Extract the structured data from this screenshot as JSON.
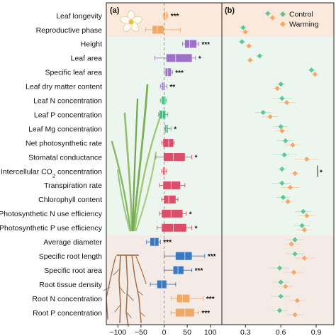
{
  "chart_data": [
    {
      "panel": "(a)",
      "type": "boxplot",
      "xlim": [
        -125,
        125
      ],
      "xticks": [
        -100,
        -50,
        0,
        50,
        100
      ],
      "reference_line": 0,
      "traits": [
        {
          "label": "Leaf longevity",
          "group": "flower",
          "q1": 0,
          "median": 3,
          "q3": 5,
          "wmin": -2,
          "wmax": 8,
          "sig": "***",
          "color": "#f0a868"
        },
        {
          "label": "Reproductive phase",
          "group": "flower",
          "q1": -25,
          "median": -15,
          "q3": -1,
          "wmin": -40,
          "wmax": 35,
          "sig": "",
          "color": "#f0a868"
        },
        {
          "label": "Height",
          "group": "leaf",
          "q1": 45,
          "median": 55,
          "q3": 70,
          "wmin": 40,
          "wmax": 75,
          "sig": "***",
          "color": "#9b72c8"
        },
        {
          "label": "Leaf area",
          "group": "leaf",
          "q1": 5,
          "median": 25,
          "q3": 60,
          "wmin": -20,
          "wmax": 68,
          "sig": "*",
          "color": "#9b72c8"
        },
        {
          "label": "Specific leaf area",
          "group": "leaf",
          "q1": 3,
          "median": 8,
          "q3": 15,
          "wmin": 0,
          "wmax": 18,
          "sig": "***",
          "color": "#9b72c8"
        },
        {
          "label": "Leaf dry matter content",
          "group": "leaf",
          "q1": -5,
          "median": -2,
          "q3": 1,
          "wmin": -8,
          "wmax": 6,
          "sig": "**",
          "color": "#9b72c8"
        },
        {
          "label": "Leaf N concentration",
          "group": "leaf",
          "q1": -5,
          "median": 0,
          "q3": 3,
          "wmin": -8,
          "wmax": 5,
          "sig": "",
          "color": "#4db883"
        },
        {
          "label": "Leaf P concentration",
          "group": "leaf",
          "q1": -10,
          "median": -3,
          "q3": 3,
          "wmin": -12,
          "wmax": 8,
          "sig": "",
          "color": "#4db883"
        },
        {
          "label": "Leaf Mg concentration",
          "group": "leaf",
          "q1": 2,
          "median": 5,
          "q3": 8,
          "wmin": 0,
          "wmax": 15,
          "sig": "*",
          "color": "#4db883"
        },
        {
          "label": "Net photosynthetic rate",
          "group": "leaf",
          "q1": -2,
          "median": 10,
          "q3": 20,
          "wmin": -5,
          "wmax": 22,
          "sig": "",
          "color": "#d94f6a"
        },
        {
          "label": "Stomatal conductance",
          "group": "leaf",
          "q1": -1,
          "median": 20,
          "q3": 45,
          "wmin": -18,
          "wmax": 60,
          "sig": "*",
          "color": "#d94f6a"
        },
        {
          "label": "Intercellular CO2 concentration",
          "group": "leaf",
          "q1": -2,
          "median": 0,
          "q3": 2,
          "wmin": -5,
          "wmax": 5,
          "sig": "",
          "color": "#d94f6a"
        },
        {
          "label": "Transpiration rate",
          "group": "leaf",
          "q1": -2,
          "median": 15,
          "q3": 35,
          "wmin": -10,
          "wmax": 45,
          "sig": "",
          "color": "#d94f6a"
        },
        {
          "label": "Chlorophyll content",
          "group": "leaf",
          "q1": 0,
          "median": 10,
          "q3": 25,
          "wmin": -5,
          "wmax": 30,
          "sig": "",
          "color": "#d94f6a"
        },
        {
          "label": "Photosynthetic N use efficiency",
          "group": "leaf",
          "q1": -5,
          "median": 15,
          "q3": 40,
          "wmin": -10,
          "wmax": 48,
          "sig": "*",
          "color": "#d94f6a"
        },
        {
          "label": "Photosynthetic P use efficiency",
          "group": "leaf",
          "q1": -5,
          "median": 20,
          "q3": 48,
          "wmin": -15,
          "wmax": 60,
          "sig": "*",
          "color": "#d94f6a"
        },
        {
          "label": "Average diameter",
          "group": "root",
          "q1": -30,
          "median": -20,
          "q3": -12,
          "wmin": -38,
          "wmax": -8,
          "sig": "***",
          "color": "#3a78c4"
        },
        {
          "label": "Specific root length",
          "group": "root",
          "q1": 25,
          "median": 45,
          "q3": 60,
          "wmin": 0,
          "wmax": 88,
          "sig": "***",
          "color": "#3a78c4"
        },
        {
          "label": "Specific root area",
          "group": "root",
          "q1": 20,
          "median": 30,
          "q3": 42,
          "wmin": 0,
          "wmax": 60,
          "sig": "***",
          "color": "#3a78c4"
        },
        {
          "label": "Root tissue density",
          "group": "root",
          "q1": -15,
          "median": -5,
          "q3": 5,
          "wmin": -30,
          "wmax": 25,
          "sig": "",
          "color": "#3a78c4"
        },
        {
          "label": "Root N concentration",
          "group": "root",
          "q1": 28,
          "median": 40,
          "q3": 55,
          "wmin": 15,
          "wmax": 85,
          "sig": "***",
          "color": "#f0a868"
        },
        {
          "label": "Root P concentration",
          "group": "root",
          "q1": 25,
          "median": 45,
          "q3": 65,
          "wmin": 15,
          "wmax": 75,
          "sig": "***",
          "color": "#f0a868"
        }
      ]
    },
    {
      "panel": "(b)",
      "type": "dot_errorbar",
      "xlim": [
        0.1,
        1.05
      ],
      "xticks": [
        0.3,
        0.6,
        0.9
      ],
      "xtick_labels": [
        "0.3",
        "0.6",
        "0.9"
      ],
      "legend": [
        {
          "name": "Control",
          "color": "#5cc795",
          "marker": "diamond"
        },
        {
          "name": "Warming",
          "color": "#f3a868",
          "marker": "diamond"
        }
      ],
      "annotation": {
        "text": "*",
        "trait_index": 11
      },
      "control": [
        0.49,
        0.28,
        0.27,
        0.42,
        0.86,
        0.6,
        0.61,
        0.45,
        0.6,
        0.64,
        0.63,
        0.61,
        0.61,
        0.62,
        0.79,
        0.78,
        0.72,
        0.72,
        0.59,
        0.6,
        0.6,
        0.59
      ],
      "warming": [
        0.53,
        0.3,
        0.33,
        0.34,
        0.89,
        0.57,
        0.65,
        0.51,
        0.61,
        0.7,
        0.82,
        0.72,
        0.68,
        0.66,
        0.82,
        0.8,
        0.69,
        0.8,
        0.71,
        0.64,
        0.74,
        0.72
      ],
      "err": [
        0.04,
        0.03,
        0.03,
        0.03,
        0.03,
        0.04,
        0.08,
        0.07,
        0.06,
        0.07,
        0.1,
        0.04,
        0.08,
        0.06,
        0.07,
        0.07,
        0.07,
        0.08,
        0.08,
        0.07,
        0.08,
        0.07
      ]
    }
  ]
}
